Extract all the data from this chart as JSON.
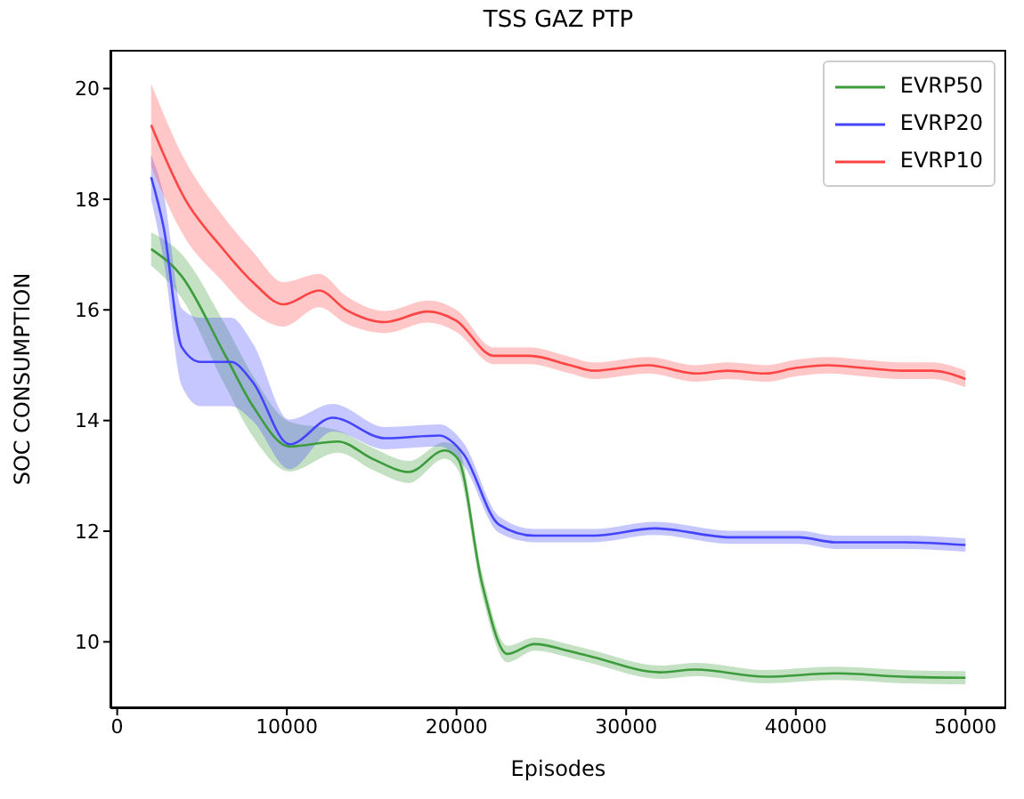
{
  "chart_data": {
    "type": "line",
    "title": "TSS GAZ PTP",
    "xlabel": "Episodes",
    "ylabel": "SOC CONSUMPTION",
    "xlim": [
      -400,
      52400
    ],
    "xticks": [
      0,
      10000,
      20000,
      30000,
      40000,
      50000
    ],
    "ylim": [
      8.8,
      20.7
    ],
    "yticks": [
      10,
      12,
      14,
      16,
      18,
      20
    ],
    "grid": false,
    "legend": "top right",
    "marker": "none",
    "line_style": "solid",
    "series": [
      {
        "name": "EVRP50",
        "color": "#3c9c3c",
        "x": [
          2000,
          3800,
          6300,
          8000,
          10150,
          13000,
          15100,
          17200,
          19300,
          20100,
          21500,
          23000,
          24600,
          26700,
          28100,
          32000,
          34100,
          38200,
          42300,
          46300,
          50000
        ],
        "values": [
          17.1,
          16.61,
          15.22,
          14.26,
          13.53,
          13.62,
          13.3,
          13.07,
          13.46,
          13.3,
          11.06,
          9.78,
          9.96,
          9.83,
          9.72,
          9.45,
          9.5,
          9.37,
          9.43,
          9.37,
          9.35
        ],
        "lower": [
          16.8,
          16.21,
          14.67,
          13.71,
          13.08,
          13.42,
          13.1,
          12.87,
          13.31,
          13.1,
          10.86,
          9.63,
          9.84,
          9.71,
          9.6,
          9.33,
          9.38,
          9.25,
          9.31,
          9.25,
          9.23
        ],
        "upper": [
          17.4,
          17.01,
          15.77,
          14.81,
          13.98,
          13.82,
          13.5,
          13.27,
          13.61,
          13.5,
          11.26,
          9.93,
          10.08,
          9.95,
          9.84,
          9.57,
          9.62,
          9.49,
          9.55,
          9.49,
          9.47
        ]
      },
      {
        "name": "EVRP20",
        "color": "#4444ff",
        "x": [
          2000,
          2750,
          3800,
          4900,
          6700,
          8000,
          10150,
          12700,
          15800,
          19000,
          20400,
          22500,
          24600,
          28100,
          31700,
          36200,
          40200,
          42300,
          46300,
          50000
        ],
        "values": [
          18.4,
          17.47,
          15.33,
          15.06,
          15.06,
          14.69,
          13.57,
          14.05,
          13.68,
          13.73,
          13.4,
          12.12,
          11.92,
          11.92,
          12.05,
          11.89,
          11.89,
          11.8,
          11.8,
          11.75
        ],
        "lower": [
          18.0,
          16.87,
          14.63,
          14.26,
          14.26,
          13.99,
          13.12,
          13.8,
          13.48,
          13.53,
          13.2,
          11.97,
          11.8,
          11.8,
          11.93,
          11.77,
          11.77,
          11.68,
          11.68,
          11.63
        ],
        "upper": [
          18.8,
          18.07,
          16.03,
          15.86,
          15.86,
          15.39,
          14.02,
          14.3,
          13.88,
          13.93,
          13.6,
          12.27,
          12.04,
          12.04,
          12.17,
          12.01,
          12.01,
          11.92,
          11.92,
          11.87
        ]
      },
      {
        "name": "EVRP10",
        "color": "#ff4444",
        "x": [
          2000,
          4000,
          6100,
          8000,
          9800,
          11900,
          13500,
          15800,
          18300,
          20000,
          22200,
          24300,
          26700,
          28100,
          31300,
          34100,
          36000,
          38200,
          40000,
          41900,
          44000,
          46300,
          48000,
          50000
        ],
        "values": [
          19.34,
          18.0,
          17.15,
          16.5,
          16.1,
          16.35,
          16.0,
          15.78,
          15.97,
          15.8,
          15.17,
          15.17,
          15.0,
          14.9,
          15.0,
          14.85,
          14.9,
          14.85,
          14.95,
          15.0,
          14.95,
          14.9,
          14.9,
          14.75
        ],
        "lower": [
          18.59,
          17.3,
          16.55,
          15.95,
          15.7,
          16.05,
          15.75,
          15.58,
          15.77,
          15.6,
          15.02,
          15.02,
          14.85,
          14.75,
          14.85,
          14.7,
          14.75,
          14.7,
          14.8,
          14.85,
          14.8,
          14.75,
          14.75,
          14.6
        ],
        "upper": [
          20.09,
          18.7,
          17.75,
          17.05,
          16.5,
          16.65,
          16.25,
          15.98,
          16.17,
          16.0,
          15.32,
          15.32,
          15.15,
          15.05,
          15.15,
          15.0,
          15.05,
          15.0,
          15.1,
          15.15,
          15.1,
          15.05,
          15.05,
          14.9
        ]
      }
    ]
  }
}
